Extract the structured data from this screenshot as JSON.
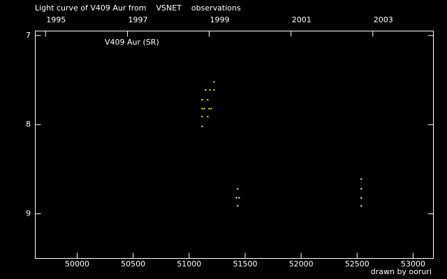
{
  "chart_data": {
    "type": "scatter",
    "title_parts": [
      "Light curve of V409 Aur from",
      "VSNET",
      "observations"
    ],
    "title_colors": [
      "#ffffff",
      "#ffff00",
      "#ffffff"
    ],
    "annotation": "V409 Aur (SR)",
    "credit": "drawn by ooruri",
    "credit_color": "#00e0e0",
    "background": "#000000",
    "xlim": [
      49626,
      53181
    ],
    "xticks": [
      50000,
      50500,
      51000,
      51500,
      52000,
      52500,
      53000
    ],
    "x2ticks": [
      {
        "value": 49718,
        "label": "1995"
      },
      {
        "value": 50449,
        "label": "1997"
      },
      {
        "value": 51179,
        "label": "1999"
      },
      {
        "value": 51910,
        "label": "2001"
      },
      {
        "value": 52640,
        "label": "2003"
      }
    ],
    "ylim": [
      6.95,
      9.5
    ],
    "y_inverted": true,
    "yticks": [
      7,
      8,
      9
    ],
    "series": [
      {
        "color": "#ffff00",
        "x": [
          51222,
          51147,
          51185,
          51222,
          51116,
          51166,
          51116,
          51135,
          51178,
          51197,
          51116,
          51166,
          51116
        ],
        "values": [
          7.52,
          7.61,
          7.61,
          7.61,
          7.72,
          7.72,
          7.82,
          7.82,
          7.82,
          7.82,
          7.91,
          7.91,
          8.02
        ]
      },
      {
        "color": "#ffffff",
        "x": [
          51434,
          51422,
          51447,
          51434,
          52537,
          52537,
          52537,
          52537
        ],
        "values": [
          8.72,
          8.82,
          8.82,
          8.91,
          8.61,
          8.72,
          8.82,
          8.91
        ]
      }
    ]
  }
}
